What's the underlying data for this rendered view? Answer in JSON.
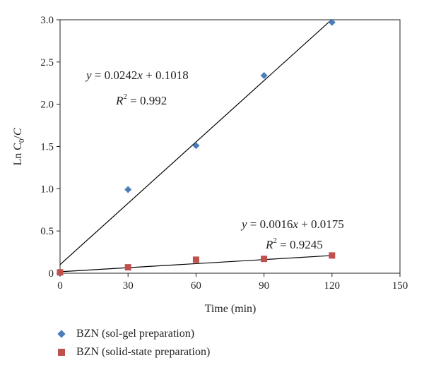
{
  "chart_data": {
    "type": "scatter",
    "xlabel": "Time (min)",
    "ylabel": "Ln C0/C",
    "xlim": [
      0,
      150
    ],
    "ylim": [
      0,
      3.0
    ],
    "x_ticks": [
      "0",
      "30",
      "60",
      "90",
      "120",
      "150"
    ],
    "y_ticks": [
      "0",
      "0.5",
      "1.0",
      "1.5",
      "2.0",
      "2.5",
      "3.0"
    ],
    "grid": false,
    "legend_position": "bottom-left",
    "series": [
      {
        "name": "BZN (sol-gel preparation)",
        "marker": "diamond",
        "color": "#4a7ebb",
        "x": [
          0,
          30,
          60,
          90,
          120
        ],
        "y": [
          0.0,
          0.99,
          1.51,
          2.34,
          2.97
        ],
        "fit": {
          "slope": 0.0242,
          "intercept": 0.1018,
          "x_range": [
            0,
            120
          ]
        },
        "equation": "y = 0.0242x + 0.1018",
        "r2": "R2 = 0.992"
      },
      {
        "name": "BZN (solid-state preparation)",
        "marker": "square",
        "color": "#c0504d",
        "x": [
          0,
          30,
          60,
          90,
          120
        ],
        "y": [
          0.01,
          0.07,
          0.16,
          0.17,
          0.21
        ],
        "fit": {
          "slope": 0.0016,
          "intercept": 0.0175,
          "x_range": [
            0,
            120
          ]
        },
        "equation": "y = 0.0016x + 0.0175",
        "r2": "R2 = 0.9245"
      }
    ]
  },
  "labels": {
    "eq1_prefix": "y",
    "eq1_rest": " = 0.0242",
    "eq1_x": "x",
    "eq1_tail": " + 0.1018",
    "r2_1_r": "R",
    "r2_1_sup": "2",
    "r2_1_val": " = 0.992",
    "eq2_prefix": "y",
    "eq2_rest": " = 0.0016",
    "eq2_x": "x",
    "eq2_tail": " + 0.0175",
    "r2_2_r": "R",
    "r2_2_sup": "2",
    "r2_2_val": " = 0.9245",
    "ylabel_ln": "Ln C",
    "ylabel_sub": "0",
    "ylabel_tail": "/",
    "ylabel_c": "C",
    "xlabel": "Time (min)",
    "legend1": "BZN (sol-gel preparation)",
    "legend2": "BZN (solid-state preparation)"
  }
}
